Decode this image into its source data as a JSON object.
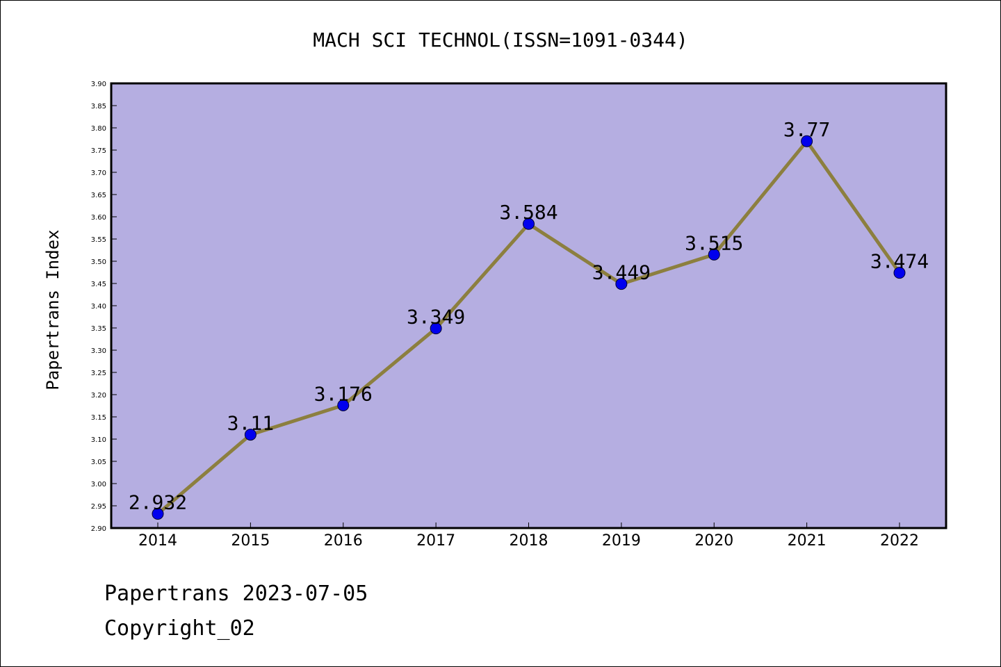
{
  "chart_data": {
    "type": "line",
    "title": "MACH SCI TECHNOL(ISSN=1091-0344)",
    "xlabel": "",
    "ylabel": "Papertrans Index",
    "categories": [
      "2014",
      "2015",
      "2016",
      "2017",
      "2018",
      "2019",
      "2020",
      "2021",
      "2022"
    ],
    "values": [
      2.932,
      3.11,
      3.176,
      3.349,
      3.584,
      3.449,
      3.515,
      3.77,
      3.474
    ],
    "data_labels": [
      "2.932",
      "3.11",
      "3.176",
      "3.349",
      "3.584",
      "3.449",
      "3.515",
      "3.77",
      "3.474"
    ],
    "ylim": [
      2.9,
      3.9
    ],
    "yticks": [
      "2.90",
      "2.95",
      "3.00",
      "3.05",
      "3.10",
      "3.15",
      "3.20",
      "3.25",
      "3.30",
      "3.35",
      "3.40",
      "3.45",
      "3.50",
      "3.55",
      "3.60",
      "3.65",
      "3.70",
      "3.75",
      "3.80",
      "3.85",
      "3.90"
    ],
    "grid": false,
    "colors": {
      "plot_background": "#b5aee1",
      "line": "#8c7f3f",
      "marker": "#0000ee"
    }
  },
  "footer": {
    "source_line": "Papertrans 2023-07-05",
    "copyright_line": "Copyright_02"
  }
}
